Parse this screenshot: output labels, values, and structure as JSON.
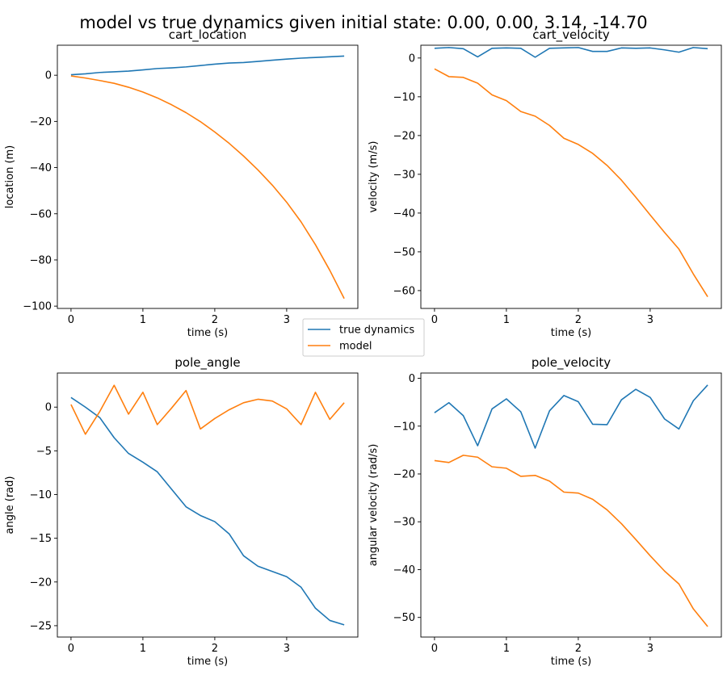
{
  "suptitle": "model vs true dynamics given initial state: 0.00, 0.00, 3.14, -14.70",
  "legend": {
    "placement": "center",
    "entries": [
      {
        "label": "true dynamics",
        "color": "#1f77b4"
      },
      {
        "label": "model",
        "color": "#ff7f0e"
      }
    ]
  },
  "chart_data": [
    {
      "type": "line",
      "title": "cart_location",
      "xlabel": "time (s)",
      "ylabel": "location (m)",
      "xlim": [
        -0.19,
        3.99
      ],
      "ylim": [
        -101,
        13
      ],
      "xticks": [
        0,
        1,
        2,
        3
      ],
      "yticks": [
        0,
        -20,
        -40,
        -60,
        -80,
        -100
      ],
      "x": [
        0,
        0.2,
        0.4,
        0.6,
        0.8,
        1.0,
        1.2,
        1.4,
        1.6,
        1.8,
        2.0,
        2.2,
        2.4,
        2.6,
        2.8,
        3.0,
        3.2,
        3.4,
        3.6,
        3.8
      ],
      "series": [
        {
          "name": "true dynamics",
          "color": "#1f77b4",
          "values": [
            0.2,
            0.6,
            1.2,
            1.5,
            1.8,
            2.3,
            2.9,
            3.2,
            3.6,
            4.2,
            4.8,
            5.3,
            5.5,
            6.0,
            6.5,
            7.0,
            7.4,
            7.7,
            8.0,
            8.3
          ]
        },
        {
          "name": "model",
          "color": "#ff7f0e",
          "values": [
            -0.3,
            -1.2,
            -2.3,
            -3.5,
            -5.2,
            -7.3,
            -9.8,
            -12.8,
            -16.2,
            -20.1,
            -24.6,
            -29.5,
            -35.0,
            -41.0,
            -47.6,
            -55.0,
            -63.5,
            -73.4,
            -84.5,
            -96.7
          ]
        }
      ]
    },
    {
      "type": "line",
      "title": "cart_velocity",
      "xlabel": "time (s)",
      "ylabel": "velocity (m/s)",
      "xlim": [
        -0.19,
        3.99
      ],
      "ylim": [
        -64.6,
        3.3
      ],
      "xticks": [
        0,
        1,
        2,
        3
      ],
      "yticks": [
        0,
        -10,
        -20,
        -30,
        -40,
        -50,
        -60
      ],
      "x": [
        0,
        0.2,
        0.4,
        0.6,
        0.8,
        1.0,
        1.2,
        1.4,
        1.6,
        1.8,
        2.0,
        2.2,
        2.4,
        2.6,
        2.8,
        3.0,
        3.2,
        3.4,
        3.6,
        3.8
      ],
      "series": [
        {
          "name": "true dynamics",
          "color": "#1f77b4",
          "values": [
            2.5,
            2.7,
            2.4,
            0.3,
            2.5,
            2.6,
            2.5,
            0.2,
            2.5,
            2.6,
            2.7,
            1.7,
            1.7,
            2.6,
            2.5,
            2.6,
            2.1,
            1.5,
            2.7,
            2.4
          ]
        },
        {
          "name": "model",
          "color": "#ff7f0e",
          "values": [
            -2.8,
            -4.8,
            -5.0,
            -6.5,
            -9.5,
            -11.0,
            -13.8,
            -15.0,
            -17.4,
            -20.7,
            -22.3,
            -24.6,
            -27.7,
            -31.5,
            -35.9,
            -40.5,
            -45.0,
            -49.3,
            -55.7,
            -61.6
          ]
        }
      ]
    },
    {
      "type": "line",
      "title": "pole_angle",
      "xlabel": "time (s)",
      "ylabel": "angle (rad)",
      "xlim": [
        -0.19,
        3.99
      ],
      "ylim": [
        -26.3,
        3.9
      ],
      "xticks": [
        0,
        1,
        2,
        3
      ],
      "yticks": [
        0,
        -5,
        -10,
        -15,
        -20,
        -25
      ],
      "x": [
        0,
        0.2,
        0.4,
        0.6,
        0.8,
        1.0,
        1.2,
        1.4,
        1.6,
        1.8,
        2.0,
        2.2,
        2.4,
        2.6,
        2.8,
        3.0,
        3.2,
        3.4,
        3.6,
        3.8
      ],
      "series": [
        {
          "name": "true dynamics",
          "color": "#1f77b4",
          "values": [
            1.1,
            0.0,
            -1.2,
            -3.5,
            -5.3,
            -6.3,
            -7.4,
            -9.4,
            -11.4,
            -12.4,
            -13.1,
            -14.5,
            -17.0,
            -18.2,
            -18.8,
            -19.4,
            -20.6,
            -23.0,
            -24.4,
            -24.9
          ]
        },
        {
          "name": "model",
          "color": "#ff7f0e",
          "values": [
            0.3,
            -3.1,
            -0.5,
            2.5,
            -0.8,
            1.7,
            -2.0,
            -0.1,
            1.9,
            -2.5,
            -1.3,
            -0.3,
            0.5,
            0.9,
            0.7,
            -0.2,
            -2.0,
            1.7,
            -1.4,
            0.5
          ]
        }
      ]
    },
    {
      "type": "line",
      "title": "pole_velocity",
      "xlabel": "time (s)",
      "ylabel": "angular velocity (rad/s)",
      "xlim": [
        -0.19,
        3.99
      ],
      "ylim": [
        -54.1,
        1.1
      ],
      "xticks": [
        0,
        1,
        2,
        3
      ],
      "yticks": [
        0,
        -10,
        -20,
        -30,
        -40,
        -50
      ],
      "x": [
        0,
        0.2,
        0.4,
        0.6,
        0.8,
        1.0,
        1.2,
        1.4,
        1.6,
        1.8,
        2.0,
        2.2,
        2.4,
        2.6,
        2.8,
        3.0,
        3.2,
        3.4,
        3.6,
        3.8
      ],
      "series": [
        {
          "name": "true dynamics",
          "color": "#1f77b4",
          "values": [
            -7.2,
            -5.1,
            -7.8,
            -14.1,
            -6.4,
            -4.3,
            -7.0,
            -14.6,
            -6.8,
            -3.6,
            -4.9,
            -9.6,
            -9.7,
            -4.5,
            -2.3,
            -4.0,
            -8.5,
            -10.6,
            -4.7,
            -1.4
          ]
        },
        {
          "name": "model",
          "color": "#ff7f0e",
          "values": [
            -17.2,
            -17.6,
            -16.1,
            -16.5,
            -18.5,
            -18.8,
            -20.5,
            -20.3,
            -21.5,
            -23.8,
            -24.0,
            -25.3,
            -27.5,
            -30.4,
            -33.7,
            -37.1,
            -40.3,
            -43.0,
            -48.2,
            -51.9
          ]
        }
      ]
    }
  ]
}
